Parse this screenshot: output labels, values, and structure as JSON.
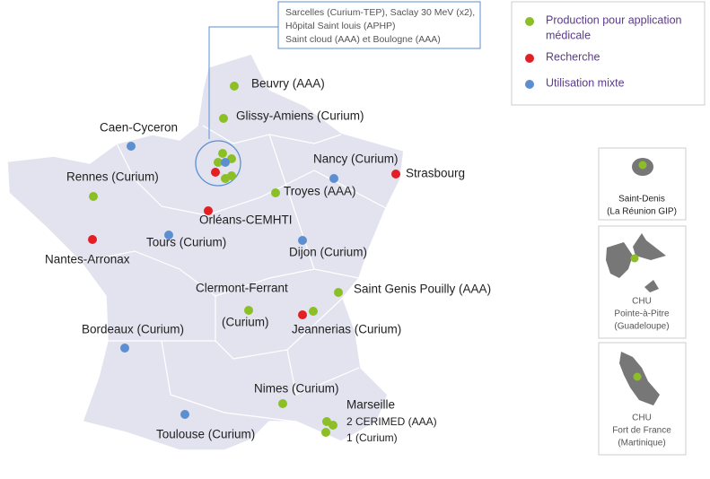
{
  "callout": {
    "lines": [
      "Sarcelles (Curium-TEP), Saclay 30 MeV (x2),",
      "Hôpital Saint louis (APHP)",
      "Saint cloud (AAA) et Boulogne (AAA)"
    ]
  },
  "legend": {
    "items": [
      {
        "lines": [
          "Production pour application",
          "médicale"
        ]
      },
      {
        "lines": [
          "Recherche"
        ]
      },
      {
        "lines": [
          "Utilisation mixte"
        ]
      }
    ]
  },
  "cities": [
    "Beuvry (AAA)",
    "Glissy-Amiens (Curium)",
    "Caen-Cyceron",
    "Nancy (Curium)",
    "Strasbourg",
    "Rennes (Curium)",
    "Troyes (AAA)",
    "Orléans-CEMHTI",
    "Tours (Curium)",
    "Nantes-Arronax",
    "Dijon (Curium)",
    "Clermont-Ferrant",
    "(Curium)",
    "Saint Genis Pouilly (AAA)",
    "Jeannerias (Curium)",
    "Bordeaux (Curium)",
    "Nimes (Curium)",
    "Marseille",
    "2 CERIMED (AAA)",
    "1 (Curium)",
    "Toulouse (Curium)"
  ],
  "insets": [
    {
      "lines": [
        "Saint-Denis",
        "(La Réunion GIP)"
      ]
    },
    {
      "lines": [
        "CHU",
        "Pointe-à-Pitre",
        "(Guadeloupe)"
      ]
    },
    {
      "lines": [
        "CHU",
        "Fort de France",
        "(Martinique)"
      ]
    }
  ]
}
